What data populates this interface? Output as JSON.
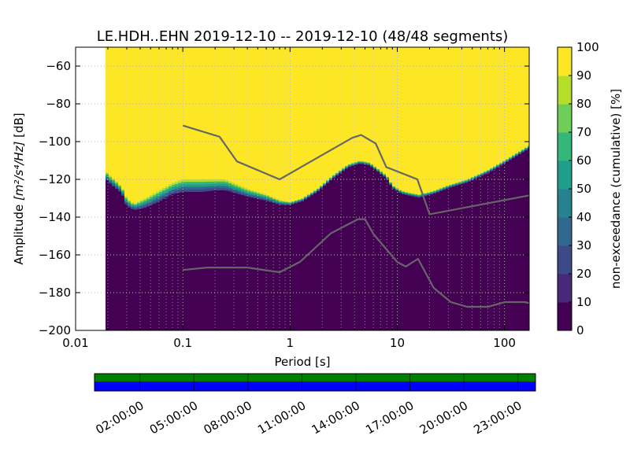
{
  "chart_data": {
    "type": "heatmap",
    "title": "LE.HDH..EHN   2019-12-10 -- 2019-12-10  (48/48 segments)",
    "xlabel": "Period [s]",
    "ylabel_prefix": "Amplitude ",
    "ylabel_units": "[m²/s⁴/Hz]",
    "ylabel_suffix": " [dB]",
    "x_scale": "log",
    "xlim": [
      0.01,
      170
    ],
    "ylim": [
      -200,
      -50
    ],
    "x_ticks": [
      {
        "value": 0.01,
        "label": "0.01"
      },
      {
        "value": 0.1,
        "label": "0.1"
      },
      {
        "value": 1,
        "label": "1"
      },
      {
        "value": 10,
        "label": "10"
      },
      {
        "value": 100,
        "label": "100"
      }
    ],
    "y_ticks": [
      {
        "value": -60,
        "label": "−60"
      },
      {
        "value": -80,
        "label": "−80"
      },
      {
        "value": -100,
        "label": "−100"
      },
      {
        "value": -120,
        "label": "−120"
      },
      {
        "value": -140,
        "label": "−140"
      },
      {
        "value": -160,
        "label": "−160"
      },
      {
        "value": -180,
        "label": "−180"
      },
      {
        "value": -200,
        "label": "−200"
      }
    ],
    "grid": true,
    "data_start_period": 0.019,
    "psd_envelope": {
      "period": [
        0.019,
        0.02,
        0.023,
        0.027,
        0.03,
        0.035,
        0.045,
        0.06,
        0.08,
        0.1,
        0.15,
        0.2,
        0.25,
        0.3,
        0.4,
        0.6,
        0.8,
        1.0,
        1.3,
        1.8,
        2.5,
        3.5,
        4.5,
        5.5,
        6.5,
        8,
        9,
        11,
        13,
        16,
        22,
        30,
        45,
        70,
        100,
        130,
        170
      ],
      "lower_db": [
        -120,
        -122,
        -125,
        -128,
        -135,
        -137,
        -136,
        -133,
        -129,
        -128,
        -128,
        -127,
        -127,
        -128,
        -130,
        -132,
        -134,
        -134,
        -132,
        -127,
        -120,
        -114,
        -112,
        -113,
        -116,
        -120,
        -125,
        -128,
        -129,
        -130,
        -128,
        -125,
        -122,
        -117,
        -112,
        -108,
        -104
      ],
      "upper_db": [
        -115,
        -117,
        -120,
        -124,
        -130,
        -133,
        -130,
        -126,
        -122,
        -120,
        -120,
        -120,
        -120,
        -122,
        -125,
        -128,
        -131,
        -132,
        -130,
        -125,
        -118,
        -112,
        -110,
        -111,
        -114,
        -118,
        -123,
        -126,
        -127,
        -128,
        -126,
        -123,
        -120,
        -115,
        -110,
        -106,
        -102
      ]
    },
    "colorbar": {
      "label": "non-exceedance (cumulative) [%]",
      "range": [
        0,
        100
      ],
      "ticks": [
        {
          "value": 0,
          "label": "0"
        },
        {
          "value": 10,
          "label": "10"
        },
        {
          "value": 20,
          "label": "20"
        },
        {
          "value": 30,
          "label": "30"
        },
        {
          "value": 40,
          "label": "40"
        },
        {
          "value": 50,
          "label": "50"
        },
        {
          "value": 60,
          "label": "60"
        },
        {
          "value": 70,
          "label": "70"
        },
        {
          "value": 80,
          "label": "80"
        },
        {
          "value": 90,
          "label": "90"
        },
        {
          "value": 100,
          "label": "100"
        }
      ],
      "colors": [
        "#440154",
        "#482878",
        "#3e4989",
        "#31688e",
        "#26828e",
        "#1f9e89",
        "#35b779",
        "#6ece58",
        "#b5de2b",
        "#fde725"
      ]
    },
    "series": [
      {
        "name": "high-noise model",
        "color": "#666666",
        "x": [
          0.1,
          0.22,
          0.32,
          0.8,
          3.8,
          4.6,
          6.3,
          7.9,
          15.4,
          20,
          170
        ],
        "y": [
          -91.5,
          -97.4,
          -110.5,
          -120,
          -98,
          -96.5,
          -101,
          -113.5,
          -120,
          -138.5,
          -128.5
        ]
      },
      {
        "name": "low-noise model",
        "color": "#666666",
        "x": [
          0.1,
          0.17,
          0.4,
          0.8,
          1.24,
          2.4,
          4.3,
          5,
          6,
          10,
          12,
          15.6,
          21.9,
          31.6,
          45,
          70,
          101,
          154,
          170
        ],
        "y": [
          -168,
          -166.7,
          -166.7,
          -169.2,
          -163.7,
          -148.6,
          -141.1,
          -141.1,
          -149,
          -163.8,
          -166.2,
          -162.1,
          -177.5,
          -185,
          -187.5,
          -187.5,
          -185,
          -185,
          -185.5
        ]
      }
    ],
    "availability": {
      "labels": [
        "02:00:00",
        "05:00:00",
        "08:00:00",
        "11:00:00",
        "14:00:00",
        "17:00:00",
        "20:00:00",
        "23:00:00"
      ],
      "data_color": "#008000",
      "gap_color": "#0000ff"
    }
  }
}
